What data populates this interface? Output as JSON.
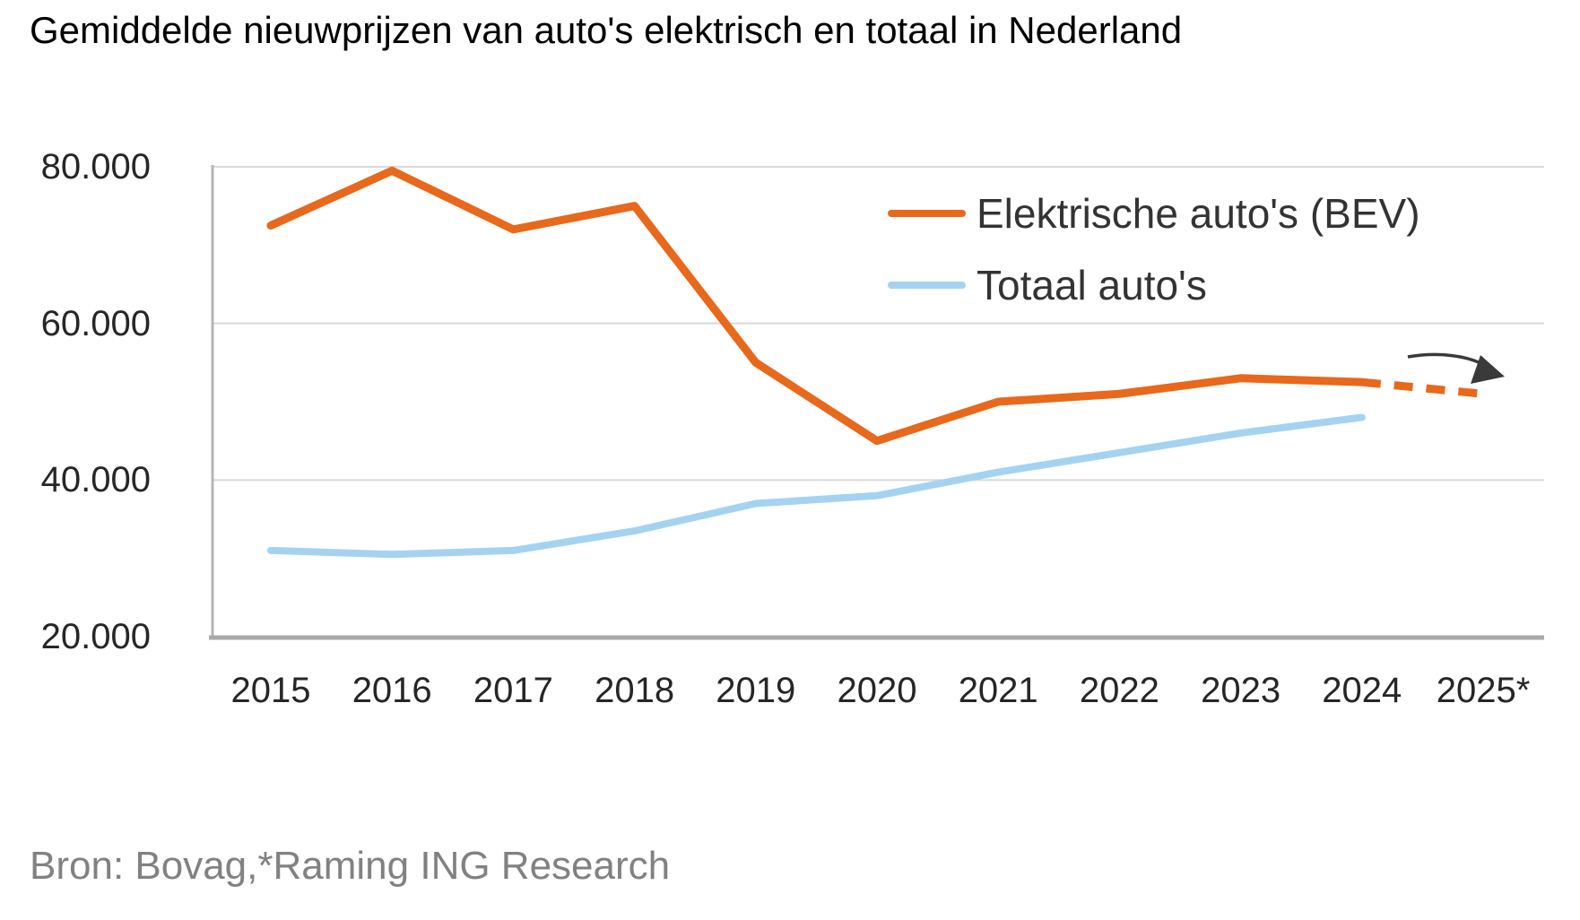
{
  "page": {
    "source_note": "Bron: Bovag,*Raming ING Research"
  },
  "chart_data": {
    "type": "line",
    "title": "Gemiddelde nieuwprijzen van auto's elektrisch en totaal in Nederland",
    "categories": [
      "2015",
      "2016",
      "2017",
      "2018",
      "2019",
      "2020",
      "2021",
      "2022",
      "2023",
      "2024",
      "2025*"
    ],
    "series": [
      {
        "name": "Elektrische auto's (BEV)",
        "color": "#E8681C",
        "values": [
          72500,
          79500,
          72000,
          75000,
          55000,
          45000,
          50000,
          51000,
          53000,
          52500,
          51000
        ],
        "forecast_from_index": 9,
        "forecast_style": "dashed"
      },
      {
        "name": "Totaal auto's",
        "color": "#A4D3F1",
        "values": [
          31000,
          30500,
          31000,
          33500,
          37000,
          38000,
          41000,
          43500,
          46000,
          48000,
          null
        ]
      }
    ],
    "ylim": [
      20000,
      80000
    ],
    "yticks": [
      80000,
      60000,
      40000,
      20000
    ],
    "ytick_labels": [
      "80.000",
      "60.000",
      "40.000",
      "20.000"
    ],
    "xlabel": "",
    "ylabel": "",
    "grid": "horizontal",
    "legend_position": "top-right-inside",
    "annotation": {
      "type": "curved-arrow",
      "direction": "right-down",
      "location": "above 2025* forecast end"
    }
  }
}
